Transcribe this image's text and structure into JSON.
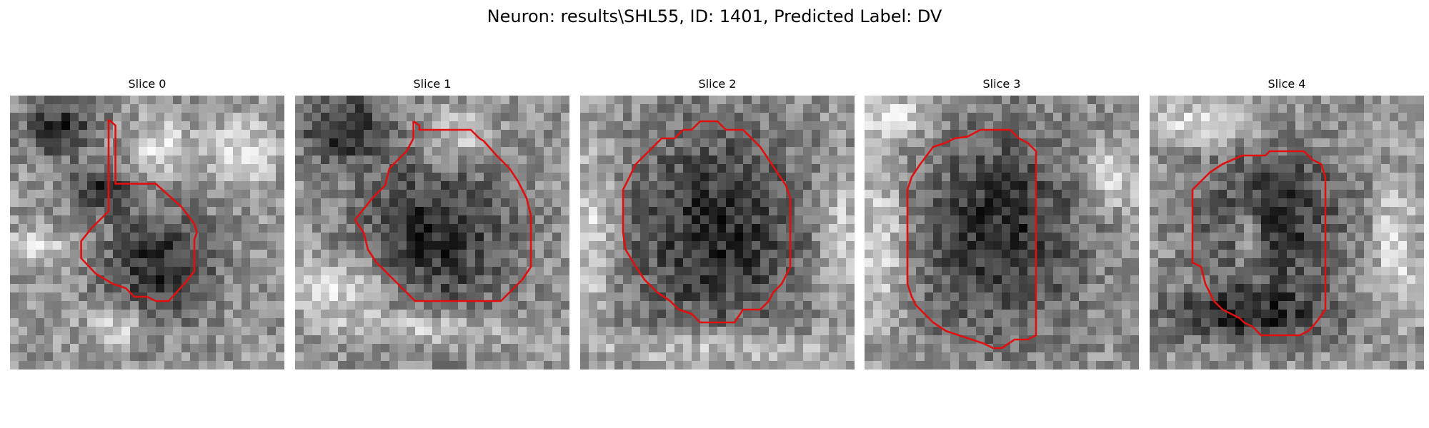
{
  "figure": {
    "title": "Neuron: results\\SHL55, ID: 1401, Predicted Label: DV",
    "contour_color": "#e01010",
    "colormap": "grayscale"
  },
  "slices": [
    {
      "label": "Slice 0"
    },
    {
      "label": "Slice 1"
    },
    {
      "label": "Slice 2"
    },
    {
      "label": "Slice 3"
    },
    {
      "label": "Slice 4"
    }
  ]
}
